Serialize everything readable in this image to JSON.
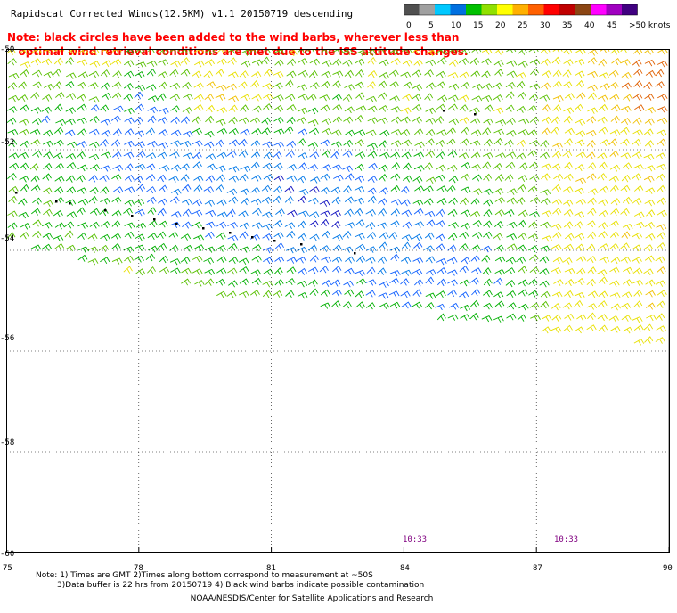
{
  "title": "Rapidscat Corrected Winds(12.5KM) v1.1 20150719 descending",
  "note_lines": [
    "Note: black circles have been added to the wind barbs, wherever less than",
    "   optimal wind retrieval conditions are met due to the ISS attitude changes."
  ],
  "colorbar": {
    "labels": [
      "0",
      "5",
      "10",
      "15",
      "20",
      "25",
      "30",
      "35",
      "40",
      "45",
      ">50 knots"
    ],
    "colors": [
      "#505050",
      "#a0a0a0",
      "#00c8ff",
      "#0070e0",
      "#00c000",
      "#90e000",
      "#ffff00",
      "#ffb000",
      "#ff6000",
      "#ff0000",
      "#c00000",
      "#8b4513",
      "#ff00ff",
      "#a000c0",
      "#400080"
    ]
  },
  "axes": {
    "lat_labels": [
      "-50",
      "-52",
      "-54",
      "-56",
      "-58",
      "-60"
    ],
    "lon_labels": [
      "75",
      "78",
      "81",
      "84",
      "87",
      "90"
    ],
    "lat_range": [
      -60,
      -50
    ],
    "lon_range": [
      75,
      90
    ],
    "grid": "dotted"
  },
  "times": [
    "10:33",
    "10:33"
  ],
  "footer": {
    "line1": "Note: 1) Times are GMT 2)Times along bottom correspond to measurement at ~50S",
    "line2": "3)Data buffer is 22 hrs from 20150719 4) Black wind barbs indicate possible contamination",
    "line3": "NOAA/NESDIS/Center for Satellite Applications and Research"
  }
}
